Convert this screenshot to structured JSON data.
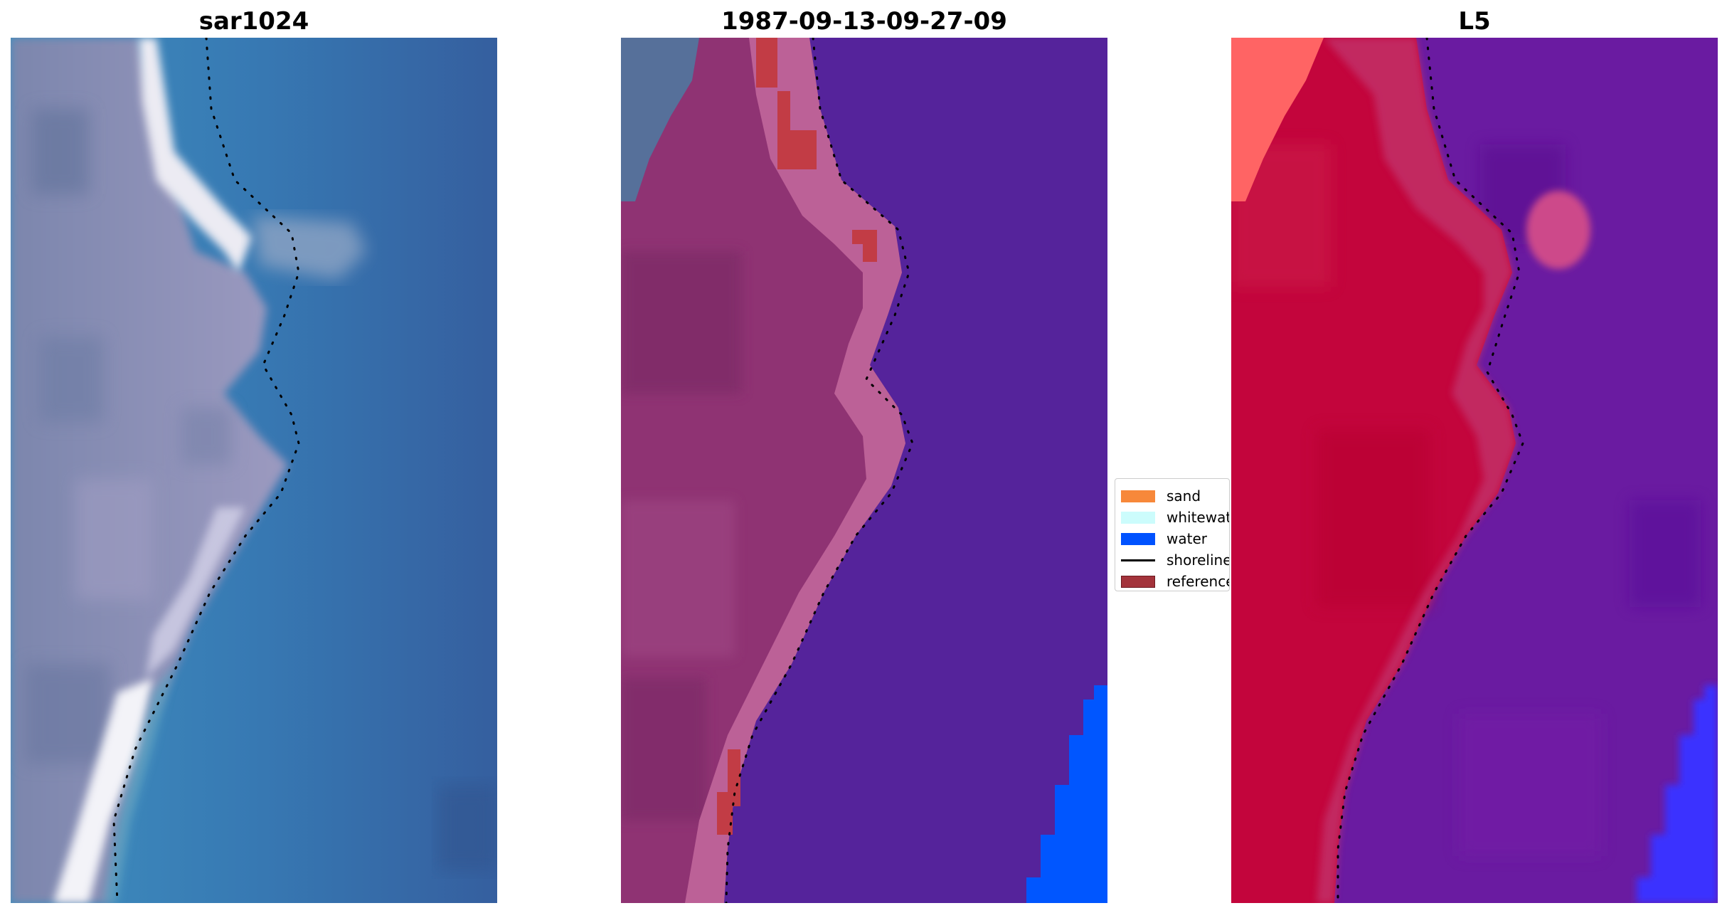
{
  "panels": [
    {
      "title": "sar1024"
    },
    {
      "title": "1987-09-13-09-27-09"
    },
    {
      "title": "L5"
    }
  ],
  "legend": {
    "items": [
      {
        "label": "sand",
        "color": "#f7883a",
        "kind": "patch"
      },
      {
        "label": "whitewater",
        "color": "#ccfcfc",
        "kind": "patch"
      },
      {
        "label": "water",
        "color": "#0052ff",
        "kind": "patch"
      },
      {
        "label": "shoreline",
        "color": "#000000",
        "kind": "line"
      },
      {
        "label": "reference",
        "color": "#a3333b",
        "kind": "patch"
      }
    ]
  },
  "colors": {
    "sar_water": "#3a74ae",
    "sar_land": "#8d8fb4",
    "sar_surf": "#f4f4f8",
    "class_water_overlay": "#54239a",
    "class_sand_overlay": "#8f3372",
    "class_whitewater_overlay": "#c46a9d",
    "class_reference": "#c23c45",
    "class_water_bright": "#0057ff",
    "l5_land": "#c4003a",
    "l5_water": "#6a1aa0",
    "l5_bright_water": "#3b2cff",
    "l5_sand_bright": "#ff6a6a"
  }
}
